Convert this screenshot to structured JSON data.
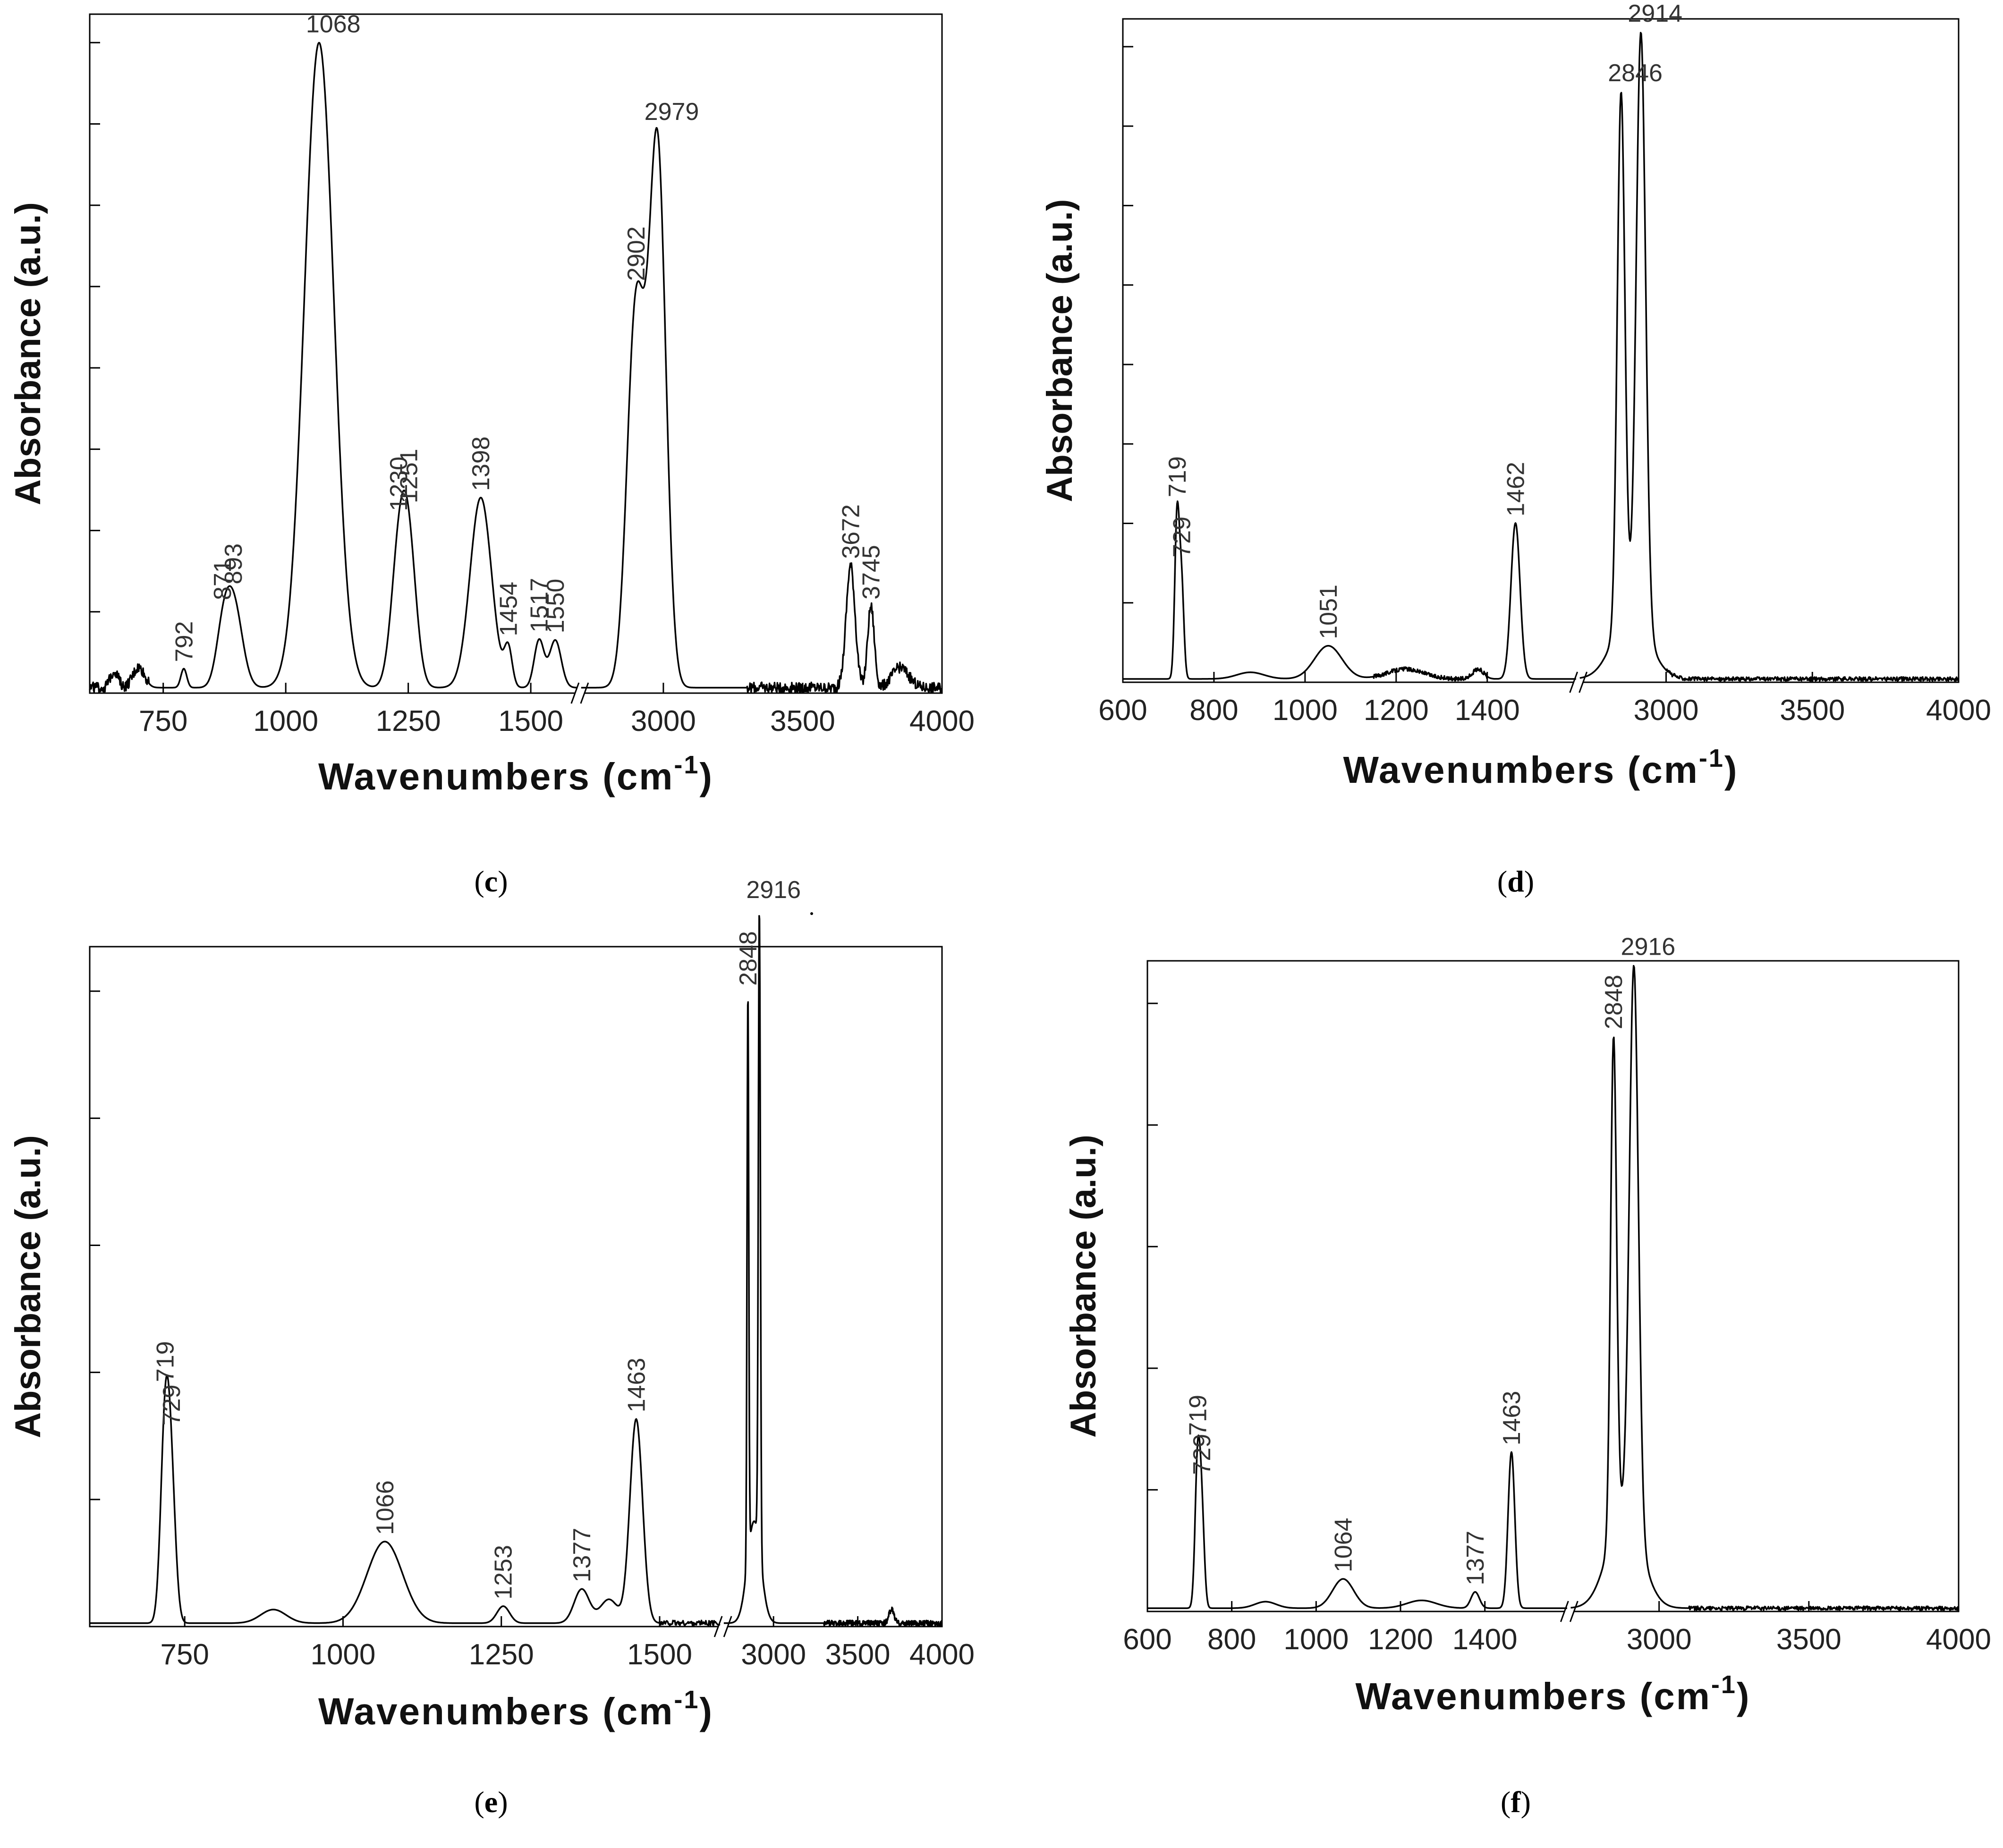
{
  "chart_data": [
    {
      "id": "c",
      "type": "line",
      "caption_letter": "c",
      "xlabel": "Wavenumbers (cm",
      "xlabel_sup": "-1",
      "xlabel_tail": ")",
      "ylabel": "Absorbance (a.u.)",
      "x_segments": [
        {
          "range": [
            600,
            1600
          ],
          "ticks": [
            750,
            1000,
            1250,
            1500
          ]
        },
        {
          "range": [
            2700,
            4000
          ],
          "ticks": [
            3000,
            3500,
            4000
          ]
        }
      ],
      "ylim": [
        0,
        1
      ],
      "y_ticks": 8,
      "axis_break": true,
      "baseline": 0.008,
      "noise": 0.008,
      "noise_regions": [
        [
          600,
          720
        ],
        [
          3300,
          4000
        ]
      ],
      "peaks": [
        {
          "x": 650,
          "h": 0.025,
          "w": 8,
          "label": ""
        },
        {
          "x": 700,
          "h": 0.03,
          "w": 12,
          "label": ""
        },
        {
          "x": 792,
          "h": 0.028,
          "w": 6,
          "label": "792"
        },
        {
          "x": 871,
          "h": 0.06,
          "w": 14,
          "label": "871"
        },
        {
          "x": 893,
          "h": 0.125,
          "w": 18,
          "label": "893"
        },
        {
          "x": 1068,
          "h": 0.95,
          "w": 30,
          "label": "1068"
        },
        {
          "x": 1230,
          "h": 0.17,
          "w": 16,
          "label": "1230"
        },
        {
          "x": 1251,
          "h": 0.19,
          "w": 16,
          "label": "1251"
        },
        {
          "x": 1398,
          "h": 0.28,
          "w": 22,
          "label": "1398"
        },
        {
          "x": 1454,
          "h": 0.055,
          "w": 8,
          "label": "1454"
        },
        {
          "x": 1517,
          "h": 0.07,
          "w": 10,
          "label": "1517"
        },
        {
          "x": 1550,
          "h": 0.07,
          "w": 12,
          "label": "1550"
        },
        {
          "x": 2902,
          "h": 0.56,
          "w": 32,
          "label": "2902"
        },
        {
          "x": 2979,
          "h": 0.79,
          "w": 30,
          "label": "2979"
        },
        {
          "x": 3672,
          "h": 0.18,
          "w": 16,
          "label": "3672"
        },
        {
          "x": 3745,
          "h": 0.12,
          "w": 12,
          "label": "3745"
        },
        {
          "x": 3850,
          "h": 0.03,
          "w": 30,
          "label": ""
        }
      ],
      "label_positions": [
        {
          "label": "792",
          "x": 792,
          "rotated": true
        },
        {
          "label": "871",
          "x": 871,
          "rotated": true
        },
        {
          "label": "893",
          "x": 893,
          "rotated": true
        },
        {
          "label": "1068",
          "x": 1068,
          "rotated": false
        },
        {
          "label": "1230",
          "x": 1230,
          "rotated": true
        },
        {
          "label": "1251",
          "x": 1251,
          "rotated": true
        },
        {
          "label": "1398",
          "x": 1398,
          "rotated": true
        },
        {
          "label": "1454",
          "x": 1454,
          "rotated": true
        },
        {
          "label": "1517",
          "x": 1517,
          "rotated": true
        },
        {
          "label": "1550",
          "x": 1550,
          "rotated": true
        },
        {
          "label": "2902",
          "x": 2902,
          "rotated": true
        },
        {
          "label": "2979",
          "x": 2979,
          "rotated": false
        },
        {
          "label": "3672",
          "x": 3672,
          "rotated": true
        },
        {
          "label": "3745",
          "x": 3745,
          "rotated": true
        }
      ]
    },
    {
      "id": "d",
      "type": "line",
      "caption_letter": "d",
      "xlabel": "Wavenumbers (cm",
      "xlabel_sup": "-1",
      "xlabel_tail": ")",
      "ylabel": "Absorbance (a.u.)",
      "x_segments": [
        {
          "range": [
            600,
            1600
          ],
          "ticks": [
            600,
            800,
            1000,
            1200,
            1400
          ]
        },
        {
          "range": [
            2700,
            4000
          ],
          "ticks": [
            3000,
            3500,
            4000
          ]
        }
      ],
      "ylim": [
        0,
        1
      ],
      "y_ticks": 8,
      "axis_break": true,
      "baseline": 0.005,
      "noise": 0.003,
      "noise_regions": [
        [
          1150,
          1400
        ],
        [
          3000,
          4000
        ]
      ],
      "peaks": [
        {
          "x": 719,
          "h": 0.245,
          "w": 5,
          "label": "719"
        },
        {
          "x": 729,
          "h": 0.14,
          "w": 5,
          "label": "729"
        },
        {
          "x": 880,
          "h": 0.01,
          "w": 30,
          "label": ""
        },
        {
          "x": 1051,
          "h": 0.05,
          "w": 30,
          "label": "1051"
        },
        {
          "x": 1220,
          "h": 0.015,
          "w": 40,
          "label": ""
        },
        {
          "x": 1380,
          "h": 0.015,
          "w": 12,
          "label": ""
        },
        {
          "x": 1462,
          "h": 0.235,
          "w": 10,
          "label": "1462"
        },
        {
          "x": 2846,
          "h": 0.8,
          "w": 13,
          "label": "2846"
        },
        {
          "x": 2914,
          "h": 0.89,
          "w": 16,
          "label": "2914"
        },
        {
          "x": 2880,
          "h": 0.1,
          "w": 60,
          "label": ""
        }
      ],
      "label_positions": [
        {
          "label": "719",
          "x": 719,
          "rotated": true
        },
        {
          "label": "729",
          "x": 729,
          "rotated": true
        },
        {
          "label": "1051",
          "x": 1051,
          "rotated": true
        },
        {
          "label": "1462",
          "x": 1462,
          "rotated": true
        },
        {
          "label": "2846",
          "x": 2846,
          "rotated": false
        },
        {
          "label": "2914",
          "x": 2914,
          "rotated": false
        }
      ]
    },
    {
      "id": "e",
      "type": "line",
      "caption_letter": "e",
      "xlabel": "Wavenumbers (cm",
      "xlabel_sup": "-1",
      "xlabel_tail": ")",
      "ylabel": "Absorbance (a.u.)",
      "x_segments": [
        {
          "range": [
            600,
            1600
          ],
          "ticks": [
            750,
            1000,
            1250,
            1500
          ]
        },
        {
          "range": [
            2700,
            4000
          ],
          "ticks": [
            3000,
            3500,
            4000
          ]
        }
      ],
      "ylim": [
        0,
        1
      ],
      "y_ticks": 5,
      "axis_break": true,
      "baseline": 0.005,
      "noise": 0.004,
      "noise_regions": [
        [
          1500,
          1600
        ],
        [
          3300,
          4000
        ]
      ],
      "peaks": [
        {
          "x": 719,
          "h": 0.28,
          "w": 7,
          "label": "719"
        },
        {
          "x": 729,
          "h": 0.18,
          "w": 7,
          "label": "729"
        },
        {
          "x": 890,
          "h": 0.02,
          "w": 20,
          "label": ""
        },
        {
          "x": 1066,
          "h": 0.12,
          "w": 28,
          "label": "1066"
        },
        {
          "x": 1253,
          "h": 0.025,
          "w": 10,
          "label": "1253"
        },
        {
          "x": 1377,
          "h": 0.05,
          "w": 12,
          "label": "1377"
        },
        {
          "x": 1420,
          "h": 0.035,
          "w": 14,
          "label": ""
        },
        {
          "x": 1463,
          "h": 0.3,
          "w": 10,
          "label": "1463"
        },
        {
          "x": 2848,
          "h": 0.83,
          "w": 5,
          "label": "2848"
        },
        {
          "x": 2916,
          "h": 0.94,
          "w": 6,
          "label": "2916"
        },
        {
          "x": 2885,
          "h": 0.15,
          "w": 40,
          "label": ""
        },
        {
          "x": 3700,
          "h": 0.02,
          "w": 15,
          "label": ""
        }
      ],
      "label_positions": [
        {
          "label": "719",
          "x": 719,
          "rotated": true
        },
        {
          "label": "729",
          "x": 729,
          "rotated": true
        },
        {
          "label": "1066",
          "x": 1066,
          "rotated": true
        },
        {
          "label": "1253",
          "x": 1253,
          "rotated": true
        },
        {
          "label": "1377",
          "x": 1377,
          "rotated": true
        },
        {
          "label": "1463",
          "x": 1463,
          "rotated": true
        },
        {
          "label": "2848",
          "x": 2848,
          "rotated": true
        },
        {
          "label": "2916",
          "x": 2916,
          "rotated": false
        }
      ]
    },
    {
      "id": "f",
      "type": "line",
      "caption_letter": "f",
      "xlabel": "Wavenumbers (cm",
      "xlabel_sup": "-1",
      "xlabel_tail": ")",
      "ylabel": "Absorbance (a.u.)",
      "x_segments": [
        {
          "range": [
            600,
            1600
          ],
          "ticks": [
            600,
            800,
            1000,
            1200,
            1400
          ]
        },
        {
          "range": [
            2700,
            4000
          ],
          "ticks": [
            3000,
            3500,
            4000
          ]
        }
      ],
      "ylim": [
        0,
        1
      ],
      "y_ticks": 5,
      "axis_break": true,
      "baseline": 0.005,
      "noise": 0.003,
      "noise_regions": [
        [
          3100,
          4000
        ]
      ],
      "peaks": [
        {
          "x": 719,
          "h": 0.22,
          "w": 6,
          "label": "719"
        },
        {
          "x": 729,
          "h": 0.14,
          "w": 6,
          "label": "729"
        },
        {
          "x": 880,
          "h": 0.01,
          "w": 25,
          "label": ""
        },
        {
          "x": 1064,
          "h": 0.045,
          "w": 25,
          "label": "1064"
        },
        {
          "x": 1250,
          "h": 0.012,
          "w": 35,
          "label": ""
        },
        {
          "x": 1377,
          "h": 0.025,
          "w": 10,
          "label": "1377"
        },
        {
          "x": 1463,
          "h": 0.24,
          "w": 8,
          "label": "1463"
        },
        {
          "x": 2848,
          "h": 0.76,
          "w": 10,
          "label": "2848"
        },
        {
          "x": 2916,
          "h": 0.86,
          "w": 15,
          "label": "2916"
        },
        {
          "x": 2885,
          "h": 0.15,
          "w": 55,
          "label": ""
        }
      ],
      "label_positions": [
        {
          "label": "719",
          "x": 719,
          "rotated": true
        },
        {
          "label": "729",
          "x": 729,
          "rotated": true
        },
        {
          "label": "1064",
          "x": 1064,
          "rotated": true
        },
        {
          "label": "1377",
          "x": 1377,
          "rotated": true
        },
        {
          "label": "1463",
          "x": 1463,
          "rotated": true
        },
        {
          "label": "2848",
          "x": 2848,
          "rotated": true
        },
        {
          "label": "2916",
          "x": 2916,
          "rotated": false
        }
      ]
    }
  ],
  "captions": {
    "c": "c",
    "d": "d",
    "e": "e",
    "f": "f"
  },
  "colors": {
    "line": "#000000",
    "axis": "#000000",
    "background": "#ffffff"
  }
}
